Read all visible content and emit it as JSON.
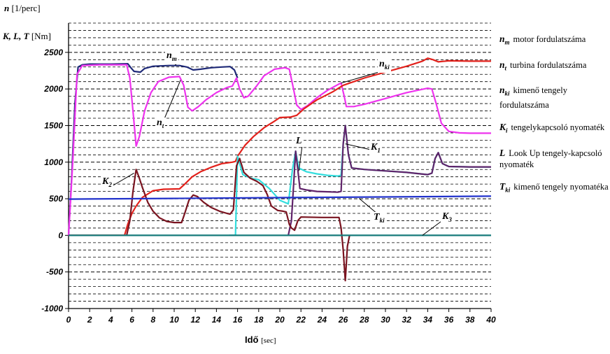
{
  "y_title": {
    "line1": "n",
    "line1_unit": "[1/perc]",
    "line2": "K, L, T",
    "line2_unit": "[Nm]"
  },
  "x_title": {
    "label": "Idő",
    "unit": "[sec]"
  },
  "legend": [
    {
      "sym": "n",
      "sub": "m",
      "text": "motor fordulatszáma"
    },
    {
      "sym": "n",
      "sub": "t",
      "text": "turbina fordulatszáma"
    },
    {
      "sym": "n",
      "sub": "ki",
      "text": "kimenő tengely fordulatszáma"
    },
    {
      "sym": "K",
      "sub": "i",
      "text": "tengelykapcsoló nyomaték"
    },
    {
      "sym": "L",
      "sub": "",
      "text": "Look Up tengely-kapcsoló nyomaték"
    },
    {
      "sym": "T",
      "sub": "ki",
      "text": "kimenő tengely nyomatéka"
    }
  ],
  "annotations": [
    {
      "sym": "n",
      "sub": "m"
    },
    {
      "sym": "n",
      "sub": "ki"
    },
    {
      "sym": "n",
      "sub": "t"
    },
    {
      "sym": "L",
      "sub": ""
    },
    {
      "sym": "K",
      "sub": "1"
    },
    {
      "sym": "K",
      "sub": "2"
    },
    {
      "sym": "T",
      "sub": "ki"
    },
    {
      "sym": "K",
      "sub": "3"
    }
  ],
  "chart_data": {
    "type": "line",
    "xlim": [
      0,
      40
    ],
    "ylim": [
      -1000,
      2900
    ],
    "x_ticks": [
      0,
      2,
      4,
      6,
      8,
      10,
      12,
      14,
      16,
      18,
      20,
      22,
      24,
      26,
      28,
      30,
      32,
      34,
      36,
      38,
      40
    ],
    "y_ticks": [
      -1000,
      -500,
      0,
      500,
      1000,
      1500,
      2000,
      2500
    ],
    "grid": "horizontal dashed every 100",
    "series": [
      {
        "name": "n_m",
        "color": "#1f2a78",
        "points": [
          [
            0,
            0
          ],
          [
            0.3,
            800
          ],
          [
            0.6,
            1800
          ],
          [
            0.9,
            2300
          ],
          [
            1.3,
            2330
          ],
          [
            2,
            2340
          ],
          [
            4,
            2340
          ],
          [
            5.6,
            2345
          ],
          [
            5.9,
            2290
          ],
          [
            6.2,
            2240
          ],
          [
            6.8,
            2230
          ],
          [
            7.2,
            2280
          ],
          [
            8,
            2310
          ],
          [
            9.5,
            2320
          ],
          [
            10.5,
            2320
          ],
          [
            11.2,
            2300
          ],
          [
            11.8,
            2260
          ],
          [
            12.5,
            2270
          ],
          [
            13.5,
            2290
          ],
          [
            14.5,
            2300
          ],
          [
            15.3,
            2305
          ],
          [
            15.7,
            2260
          ],
          [
            16,
            2150
          ]
        ]
      },
      {
        "name": "n_t",
        "color": "#ee33ee",
        "points": [
          [
            0,
            0
          ],
          [
            0.4,
            1000
          ],
          [
            0.8,
            2200
          ],
          [
            1.3,
            2320
          ],
          [
            3,
            2330
          ],
          [
            5.5,
            2330
          ],
          [
            5.8,
            2150
          ],
          [
            6.1,
            1700
          ],
          [
            6.4,
            1220
          ],
          [
            6.7,
            1350
          ],
          [
            7.2,
            1700
          ],
          [
            7.8,
            1950
          ],
          [
            8.5,
            2100
          ],
          [
            9.5,
            2160
          ],
          [
            10.5,
            2170
          ],
          [
            10.9,
            2050
          ],
          [
            11.3,
            1750
          ],
          [
            11.7,
            1700
          ],
          [
            12.3,
            1760
          ],
          [
            13,
            1850
          ],
          [
            14,
            1950
          ],
          [
            15,
            2020
          ],
          [
            15.5,
            2040
          ],
          [
            15.9,
            2150
          ],
          [
            16.2,
            2000
          ],
          [
            16.6,
            1880
          ],
          [
            17,
            1900
          ],
          [
            17.8,
            2040
          ],
          [
            18.5,
            2180
          ],
          [
            19.5,
            2270
          ],
          [
            20.5,
            2290
          ],
          [
            20.9,
            2270
          ],
          [
            21.3,
            2000
          ],
          [
            21.6,
            1780
          ],
          [
            22,
            1720
          ],
          [
            22.6,
            1770
          ],
          [
            23.5,
            1880
          ],
          [
            24.5,
            1980
          ],
          [
            25.5,
            2060
          ],
          [
            25.8,
            2080
          ],
          [
            26.1,
            1900
          ],
          [
            26.3,
            1760
          ],
          [
            27,
            1760
          ],
          [
            28,
            1790
          ],
          [
            29,
            1830
          ],
          [
            30,
            1870
          ],
          [
            31,
            1910
          ],
          [
            32,
            1950
          ],
          [
            33,
            1980
          ],
          [
            34,
            2010
          ],
          [
            34.4,
            2000
          ],
          [
            34.8,
            1800
          ],
          [
            35.3,
            1530
          ],
          [
            36,
            1420
          ],
          [
            37,
            1400
          ],
          [
            38,
            1395
          ],
          [
            40,
            1395
          ]
        ]
      },
      {
        "name": "n_ki",
        "color": "#e3221c",
        "points": [
          [
            0,
            0
          ],
          [
            5.3,
            0
          ],
          [
            5.6,
            150
          ],
          [
            6,
            300
          ],
          [
            6.4,
            400
          ],
          [
            7,
            520
          ],
          [
            8,
            610
          ],
          [
            9,
            630
          ],
          [
            10.5,
            635
          ],
          [
            11,
            700
          ],
          [
            11.7,
            800
          ],
          [
            12.5,
            870
          ],
          [
            13.5,
            930
          ],
          [
            14.5,
            980
          ],
          [
            15.5,
            1000
          ],
          [
            15.8,
            1010
          ],
          [
            16,
            1080
          ],
          [
            16.7,
            1230
          ],
          [
            17.5,
            1350
          ],
          [
            18.5,
            1470
          ],
          [
            19.5,
            1560
          ],
          [
            20,
            1610
          ],
          [
            21,
            1615
          ],
          [
            21.6,
            1640
          ],
          [
            22.3,
            1730
          ],
          [
            23.5,
            1850
          ],
          [
            25,
            1960
          ],
          [
            26,
            2050
          ],
          [
            27,
            2100
          ],
          [
            28,
            2150
          ],
          [
            30,
            2230
          ],
          [
            32,
            2310
          ],
          [
            33.5,
            2380
          ],
          [
            34,
            2420
          ],
          [
            34.5,
            2400
          ],
          [
            35,
            2370
          ],
          [
            36,
            2385
          ],
          [
            38,
            2380
          ],
          [
            40,
            2380
          ]
        ]
      },
      {
        "name": "L",
        "color": "#33dddd",
        "points": [
          [
            15.2,
            0
          ],
          [
            15.8,
            0
          ],
          [
            16,
            1080
          ],
          [
            16.5,
            830
          ],
          [
            17.3,
            780
          ],
          [
            18,
            760
          ],
          [
            19,
            640
          ],
          [
            20,
            480
          ],
          [
            20.8,
            430
          ],
          [
            21.2,
            900
          ],
          [
            21.5,
            1150
          ],
          [
            21.8,
            920
          ],
          [
            22.5,
            870
          ],
          [
            23.5,
            840
          ],
          [
            24.5,
            820
          ],
          [
            25.5,
            810
          ],
          [
            25.8,
            820
          ],
          [
            26,
            1250
          ],
          [
            26.2,
            1500
          ],
          [
            26.5,
            1100
          ],
          [
            26.8,
            920
          ],
          [
            28,
            900
          ],
          [
            30,
            880
          ],
          [
            32,
            860
          ],
          [
            34,
            830
          ],
          [
            34.4,
            850
          ],
          [
            34.7,
            1050
          ],
          [
            35,
            1130
          ],
          [
            35.4,
            980
          ],
          [
            36,
            940
          ],
          [
            38,
            935
          ],
          [
            40,
            935
          ]
        ]
      },
      {
        "name": "K1",
        "color": "#60236a",
        "points": [
          [
            20.8,
            0
          ],
          [
            21.1,
            200
          ],
          [
            21.5,
            1150
          ],
          [
            21.7,
            900
          ],
          [
            21.9,
            640
          ],
          [
            22.5,
            620
          ],
          [
            23.5,
            600
          ],
          [
            24.5,
            595
          ],
          [
            25.5,
            590
          ],
          [
            25.8,
            600
          ],
          [
            26,
            1250
          ],
          [
            26.2,
            1500
          ],
          [
            26.5,
            1100
          ],
          [
            26.8,
            920
          ],
          [
            28,
            900
          ],
          [
            30,
            880
          ],
          [
            32,
            860
          ],
          [
            34,
            830
          ],
          [
            34.4,
            850
          ],
          [
            34.7,
            1050
          ],
          [
            35,
            1130
          ],
          [
            35.4,
            980
          ],
          [
            36,
            940
          ],
          [
            38,
            935
          ],
          [
            40,
            935
          ]
        ]
      },
      {
        "name": "K2",
        "color": "#7a1420",
        "points": [
          [
            5.5,
            0
          ],
          [
            5.8,
            200
          ],
          [
            6.1,
            600
          ],
          [
            6.4,
            900
          ],
          [
            6.7,
            780
          ],
          [
            7,
            650
          ],
          [
            7.5,
            450
          ],
          [
            8,
            330
          ],
          [
            8.6,
            240
          ],
          [
            9.3,
            190
          ],
          [
            10,
            175
          ],
          [
            10.7,
            175
          ],
          [
            11,
            300
          ],
          [
            11.4,
            480
          ],
          [
            11.8,
            550
          ],
          [
            12.2,
            530
          ],
          [
            12.8,
            450
          ],
          [
            13.5,
            380
          ],
          [
            14.3,
            330
          ],
          [
            15,
            300
          ],
          [
            15.3,
            290
          ],
          [
            15.6,
            350
          ],
          [
            15.9,
            950
          ],
          [
            16.2,
            1050
          ],
          [
            16.6,
            860
          ],
          [
            17.2,
            780
          ],
          [
            17.8,
            740
          ],
          [
            18.4,
            680
          ],
          [
            18.8,
            560
          ],
          [
            19.2,
            400
          ],
          [
            19.8,
            340
          ],
          [
            20.3,
            330
          ],
          [
            20.6,
            320
          ],
          [
            20.9,
            150
          ],
          [
            21.1,
            100
          ],
          [
            21.4,
            70
          ],
          [
            21.7,
            200
          ],
          [
            22,
            250
          ],
          [
            24,
            245
          ],
          [
            25.6,
            245
          ],
          [
            25.8,
            100
          ],
          [
            26,
            -200
          ],
          [
            26.2,
            -620
          ],
          [
            26.4,
            -150
          ],
          [
            26.6,
            0
          ]
        ]
      },
      {
        "name": "T_ki",
        "color": "#2233cc",
        "points": [
          [
            0,
            495
          ],
          [
            10,
            505
          ],
          [
            20,
            515
          ],
          [
            30,
            525
          ],
          [
            40,
            535
          ]
        ]
      },
      {
        "name": "K3",
        "color": "#157a7a",
        "points": [
          [
            0,
            0
          ],
          [
            40,
            0
          ]
        ]
      }
    ]
  }
}
